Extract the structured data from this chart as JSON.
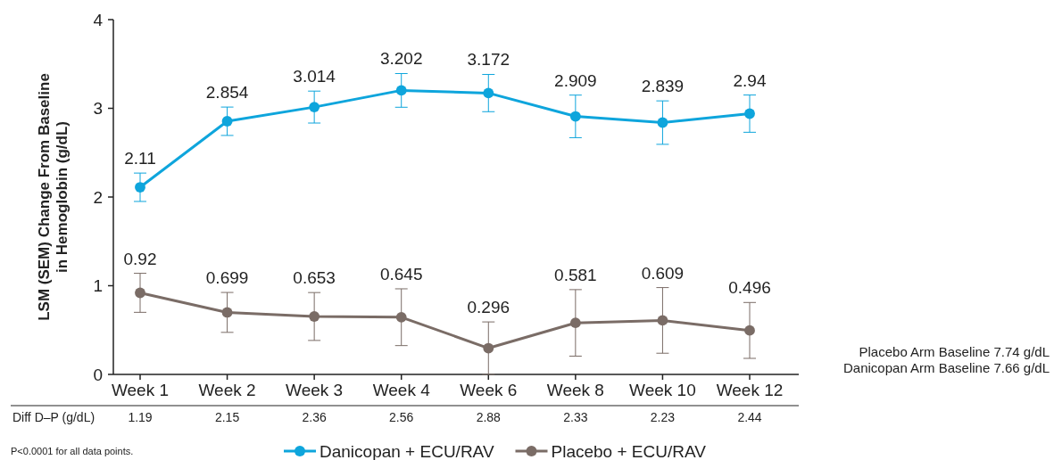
{
  "chart_data": {
    "type": "line",
    "ylabel": "LSM (SEM) Change From Baseline in Hemoglobin (g/dL)",
    "categories": [
      "Week 1",
      "Week 2",
      "Week 3",
      "Week 4",
      "Week 6",
      "Week 8",
      "Week 10",
      "Week 12"
    ],
    "series": [
      {
        "name": "Danicopan + ECU/RAV",
        "color": "#0ea5dc",
        "values": [
          2.11,
          2.854,
          3.014,
          3.202,
          3.172,
          2.909,
          2.839,
          2.94
        ],
        "errors": [
          0.16,
          0.16,
          0.18,
          0.19,
          0.21,
          0.24,
          0.245,
          0.21
        ]
      },
      {
        "name": "Placebo + ECU/RAV",
        "color": "#7a6c66",
        "values": [
          0.92,
          0.699,
          0.653,
          0.645,
          0.296,
          0.581,
          0.609,
          0.496
        ],
        "errors": [
          0.22,
          0.225,
          0.27,
          0.32,
          0.296,
          0.375,
          0.37,
          0.315
        ]
      }
    ],
    "ylim": [
      0,
      4
    ],
    "yticks": [
      0,
      1,
      2,
      3,
      4
    ],
    "grid": false,
    "marker": "circle",
    "line_style": "solid",
    "data_labels": true,
    "legend": "bottom",
    "annotations": [
      "Diff D–P (g/dL)",
      "1.19",
      "2.15",
      "2.36",
      "2.56",
      "2.88",
      "2.33",
      "2.23",
      "2.44",
      "Placebo Arm Baseline 7.74 g/dL",
      "Danicopan Arm Baseline 7.66 g/dL",
      "P<0.0001 for all data points."
    ]
  }
}
